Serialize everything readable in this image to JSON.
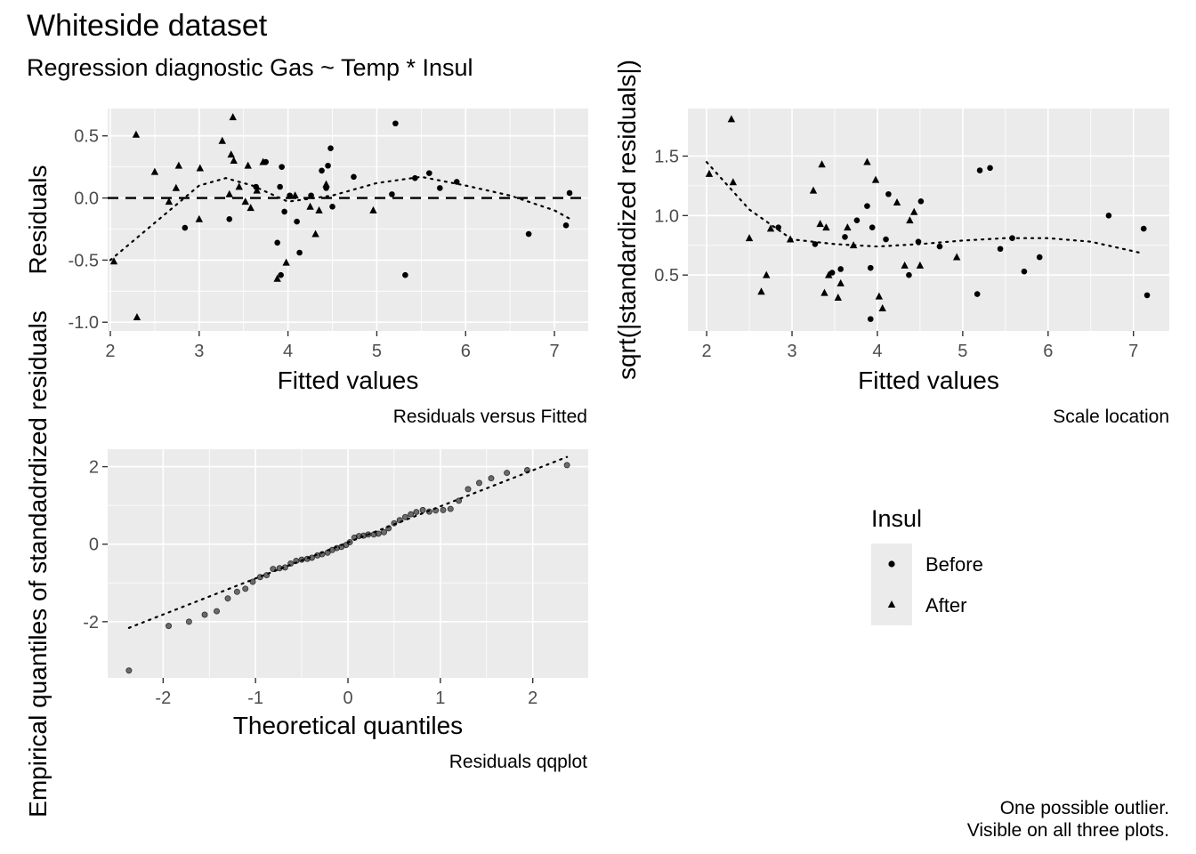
{
  "figure": {
    "title": "Whiteside dataset",
    "subtitle": "Regression diagnostic  Gas ~ Temp * Insul",
    "note_lines": [
      "One possible outlier.",
      "Visible on all three plots."
    ]
  },
  "legend": {
    "title": "Insul",
    "items": [
      {
        "label": "Before",
        "shape": "circle"
      },
      {
        "label": "After",
        "shape": "triangle"
      }
    ]
  },
  "chart_data": [
    {
      "id": "resfit",
      "type": "scatter",
      "caption": "Residuals versus Fitted",
      "xlabel": "Fitted values",
      "ylabel": "Residuals",
      "xlim": [
        1.97,
        7.38
      ],
      "ylim": [
        -1.07,
        0.72
      ],
      "xticks": [
        2,
        3,
        4,
        5,
        6,
        7
      ],
      "xtick_labels": [
        "2",
        "3",
        "4",
        "5",
        "6",
        "7"
      ],
      "yticks": [
        -1.0,
        -0.5,
        0.0,
        0.5
      ],
      "ytick_labels": [
        "-1.0",
        "-0.5",
        "0.0",
        "0.5"
      ],
      "reference_line": 0,
      "series": [
        {
          "name": "Before",
          "shape": "circle",
          "x": [
            2.84,
            3.34,
            3.64,
            3.75,
            3.88,
            3.91,
            3.92,
            3.93,
            3.96,
            4.02,
            4.1,
            4.13,
            4.26,
            4.38,
            4.43,
            4.45,
            4.48,
            4.5,
            4.74,
            5.17,
            5.21,
            5.32,
            5.43,
            5.59,
            5.71,
            5.9,
            6.71,
            7.13,
            7.17
          ],
          "y": [
            -0.24,
            -0.17,
            0.09,
            0.29,
            -0.36,
            0.09,
            -0.62,
            0.25,
            -0.11,
            0.02,
            -0.19,
            -0.44,
            0.02,
            0.22,
            0.08,
            0.26,
            0.4,
            -0.07,
            0.17,
            0.03,
            0.6,
            -0.62,
            0.16,
            0.2,
            0.08,
            0.13,
            -0.29,
            -0.22,
            0.04
          ]
        },
        {
          "name": "After",
          "shape": "triangle",
          "x": [
            2.04,
            2.29,
            2.3,
            2.5,
            2.66,
            2.74,
            2.77,
            3.0,
            3.01,
            3.26,
            3.34,
            3.36,
            3.38,
            3.39,
            3.45,
            3.52,
            3.55,
            3.58,
            3.65,
            3.72,
            3.88,
            3.98,
            4.08,
            4.25,
            4.31,
            4.35,
            4.43,
            4.96
          ],
          "y": [
            -0.51,
            0.51,
            -0.96,
            0.21,
            -0.03,
            0.08,
            0.26,
            -0.17,
            0.24,
            0.46,
            0.03,
            0.35,
            0.65,
            0.3,
            0.09,
            -0.03,
            0.26,
            -0.08,
            0.06,
            0.29,
            -0.65,
            -0.52,
            0.02,
            -0.07,
            -0.29,
            -0.1,
            0.11,
            -0.1
          ]
        }
      ],
      "smooth": {
        "x": [
          2.0,
          2.5,
          3.0,
          3.3,
          3.6,
          4.0,
          4.5,
          5.0,
          5.5,
          6.0,
          6.5,
          7.0,
          7.18
        ],
        "y": [
          -0.5,
          -0.2,
          0.1,
          0.16,
          0.1,
          -0.03,
          0.02,
          0.12,
          0.17,
          0.1,
          0.02,
          -0.1,
          -0.17
        ]
      }
    },
    {
      "id": "scaleloc",
      "type": "scatter",
      "caption": "Scale location",
      "xlabel": "Fitted values",
      "ylabel": "sqrt(|standardized residuals|)",
      "xlim": [
        1.78,
        7.42
      ],
      "ylim": [
        0.03,
        1.9
      ],
      "xticks": [
        2,
        3,
        4,
        5,
        6,
        7
      ],
      "xtick_labels": [
        "2",
        "3",
        "4",
        "5",
        "6",
        "7"
      ],
      "yticks": [
        0.5,
        1.0,
        1.5
      ],
      "ytick_labels": [
        "0.5",
        "1.0",
        "1.5"
      ],
      "series": [
        {
          "name": "Before",
          "shape": "circle",
          "x": [
            2.84,
            3.27,
            3.47,
            3.57,
            3.62,
            3.76,
            3.88,
            3.92,
            3.92,
            3.94,
            4.1,
            4.13,
            4.37,
            4.48,
            4.51,
            4.73,
            5.17,
            5.2,
            5.32,
            5.44,
            5.58,
            5.72,
            5.9,
            6.71,
            7.12,
            7.16
          ],
          "y": [
            0.9,
            0.76,
            0.52,
            0.55,
            0.82,
            0.96,
            1.08,
            0.13,
            0.56,
            0.9,
            0.8,
            1.18,
            0.5,
            0.78,
            1.12,
            0.74,
            0.34,
            1.38,
            1.4,
            0.72,
            0.81,
            0.53,
            0.65,
            1.0,
            0.89,
            0.33
          ]
        },
        {
          "name": "After",
          "shape": "triangle",
          "x": [
            2.03,
            2.29,
            2.31,
            2.5,
            2.64,
            2.7,
            2.75,
            2.98,
            3.25,
            3.33,
            3.35,
            3.38,
            3.4,
            3.43,
            3.54,
            3.57,
            3.65,
            3.72,
            3.88,
            3.98,
            4.02,
            4.06,
            4.23,
            4.32,
            4.38,
            4.43,
            4.5,
            4.93
          ],
          "y": [
            1.35,
            1.81,
            1.28,
            0.81,
            0.36,
            0.5,
            0.89,
            0.8,
            1.21,
            0.93,
            1.43,
            0.35,
            0.9,
            0.5,
            0.31,
            0.43,
            0.9,
            0.75,
            1.45,
            1.3,
            0.32,
            0.22,
            1.11,
            0.58,
            0.96,
            1.03,
            0.58,
            0.65
          ]
        }
      ],
      "smooth": {
        "x": [
          2.0,
          2.5,
          3.0,
          3.5,
          4.0,
          4.5,
          5.0,
          5.5,
          6.0,
          6.5,
          7.0,
          7.12
        ],
        "y": [
          1.45,
          1.05,
          0.8,
          0.76,
          0.74,
          0.76,
          0.79,
          0.81,
          0.81,
          0.78,
          0.7,
          0.68
        ]
      }
    },
    {
      "id": "qq",
      "type": "scatter",
      "caption": "Residuals qqplot",
      "xlabel": "Theoretical quantiles",
      "ylabel": "Empirical quantiles of standadrdized residuals",
      "xlim": [
        -2.6,
        2.6
      ],
      "ylim": [
        -3.45,
        2.45
      ],
      "xticks": [
        -2,
        -1,
        0,
        1,
        2
      ],
      "xtick_labels": [
        "-2",
        "-1",
        "0",
        "1",
        "2"
      ],
      "yticks": [
        -2,
        0,
        2
      ],
      "ytick_labels": [
        "-2",
        "0",
        "2"
      ],
      "series": [
        {
          "name": "Residuals",
          "x": [
            -2.37,
            -1.94,
            -1.72,
            -1.55,
            -1.42,
            -1.3,
            -1.2,
            -1.11,
            -1.03,
            -0.95,
            -0.88,
            -0.81,
            -0.74,
            -0.68,
            -0.62,
            -0.56,
            -0.5,
            -0.44,
            -0.39,
            -0.33,
            -0.28,
            -0.22,
            -0.17,
            -0.12,
            -0.07,
            -0.02,
            0.02,
            0.07,
            0.12,
            0.17,
            0.22,
            0.28,
            0.33,
            0.39,
            0.44,
            0.5,
            0.56,
            0.62,
            0.68,
            0.74,
            0.81,
            0.88,
            0.95,
            1.03,
            1.11,
            1.2,
            1.3,
            1.42,
            1.55,
            1.72,
            1.94,
            2.37
          ],
          "y": [
            -3.26,
            -2.11,
            -2.0,
            -1.82,
            -1.73,
            -1.4,
            -1.23,
            -1.15,
            -0.97,
            -0.85,
            -0.8,
            -0.64,
            -0.62,
            -0.6,
            -0.5,
            -0.43,
            -0.4,
            -0.38,
            -0.35,
            -0.29,
            -0.26,
            -0.22,
            -0.15,
            -0.1,
            -0.07,
            -0.02,
            0.05,
            0.17,
            0.21,
            0.22,
            0.25,
            0.25,
            0.27,
            0.31,
            0.41,
            0.54,
            0.62,
            0.7,
            0.77,
            0.83,
            0.88,
            0.84,
            0.87,
            0.88,
            0.91,
            1.12,
            1.42,
            1.58,
            1.7,
            1.84,
            1.91,
            2.04
          ]
        }
      ],
      "reference": {
        "x": [
          -2.37,
          2.37
        ],
        "y": [
          -2.16,
          2.25
        ]
      }
    }
  ]
}
